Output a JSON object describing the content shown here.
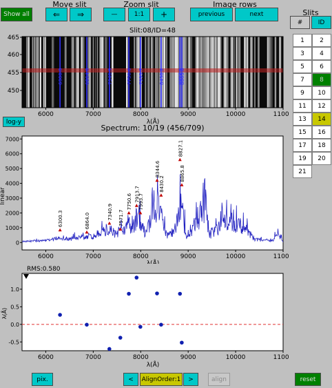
{
  "toolbar": {
    "show_all": "Show all",
    "move_slit_title": "Move slit",
    "move_left": "⇐",
    "move_right": "⇒",
    "zoom_slit_title": "Zoom slit",
    "zoom_out": "—",
    "zoom_reset": "1:1",
    "zoom_in": "+",
    "image_rows_title": "Image rows",
    "previous": "previous",
    "next": "next"
  },
  "slits": {
    "title": "Slits",
    "col_hash": "#",
    "col_id": "ID",
    "rows": [
      [
        "1",
        "2"
      ],
      [
        "3",
        "4"
      ],
      [
        "5",
        "6"
      ],
      [
        "7",
        "8"
      ],
      [
        "9",
        "10"
      ],
      [
        "11",
        "12"
      ],
      [
        "13",
        "14"
      ],
      [
        "15",
        "16"
      ],
      [
        "17",
        "18"
      ],
      [
        "19",
        "20"
      ],
      [
        "21",
        ""
      ]
    ],
    "highlight_green": "8",
    "highlight_yellow": "14"
  },
  "image_panel": {
    "title": "Slit:08/ID=48",
    "y_ticks": [
      "465",
      "460",
      "455",
      "450"
    ],
    "x_ticks": [
      "6000",
      "7000",
      "8000",
      "9000",
      "10000",
      "11000"
    ],
    "x_label": "λ(Å)",
    "line_labels": [
      "6300.3",
      "6864.0",
      "7340.9",
      "7750.6",
      "7993.7",
      "8430.2",
      "8827.1",
      "8865.8"
    ]
  },
  "logy_button": "log-y",
  "spectrum_panel": {
    "title": "Spectrum: 10/19 (456/709)",
    "y_label": "linear",
    "y_ticks": [
      "7000",
      "6000",
      "5000",
      "4000",
      "3000",
      "2000",
      "1000",
      "0"
    ],
    "x_ticks": [
      "6000",
      "7000",
      "8000",
      "9000",
      "10000",
      "11000"
    ],
    "x_label": "λ(Å)",
    "annotations": [
      "6300.3",
      "6864.0",
      "7340.9",
      "7571.7",
      "7750.6",
      "7913.7",
      "7993.7",
      "8344.6",
      "8430.2",
      "8827.1",
      "8865.8"
    ]
  },
  "residual_panel": {
    "rms": "RMS:0.580",
    "y_label": "λ(Å)",
    "y_ticks": [
      "1.0",
      "0.5",
      "0.0",
      "-0.5"
    ],
    "x_ticks": [
      "6000",
      "7000",
      "8000",
      "9000",
      "10000",
      "11000"
    ],
    "x_label": "λ(Å)"
  },
  "bottom_bar": {
    "pix": "pix.",
    "prev_order": "<",
    "order": "AlignOrder:1",
    "next_order": ">",
    "align": "align",
    "reset": "reset"
  },
  "chart_data": [
    {
      "type": "line",
      "title": "Spectrum: 10/19 (456/709)",
      "ylabel": "linear",
      "xlabel": "λ(Å)",
      "xlim": [
        5500,
        11000
      ],
      "ylim": [
        -500,
        7200
      ],
      "series": [
        {
          "x": [
            5500,
            5800,
            6000,
            6300,
            6500,
            6864,
            7000,
            7250,
            7340,
            7450,
            7571,
            7650,
            7750,
            7850,
            7913,
            7993,
            8100,
            8250,
            8344,
            8430,
            8550,
            8700,
            8780,
            8827,
            8865,
            8950,
            9100,
            9250,
            9350,
            9450,
            9600,
            9800,
            10000,
            10200,
            10400,
            10600,
            10800,
            10880,
            11000
          ],
          "y": [
            0,
            100,
            150,
            400,
            250,
            700,
            600,
            1400,
            1800,
            1000,
            1200,
            1100,
            2400,
            1900,
            2800,
            2300,
            900,
            3200,
            4200,
            3600,
            700,
            1100,
            3800,
            5500,
            4100,
            600,
            1800,
            3300,
            5000,
            900,
            1500,
            2300,
            2400,
            1500,
            300,
            200,
            150,
            1200,
            50
          ]
        }
      ],
      "annotations": [
        {
          "label": "6300.3",
          "x": 6300.3,
          "y": 850
        },
        {
          "label": "6864.0",
          "x": 6864.0,
          "y": 700
        },
        {
          "label": "7340.9",
          "x": 7340.9,
          "y": 1300
        },
        {
          "label": "7571.7",
          "x": 7571.7,
          "y": 900
        },
        {
          "label": "7750.6",
          "x": 7750.6,
          "y": 2000
        },
        {
          "label": "7913.7",
          "x": 7913.7,
          "y": 2500
        },
        {
          "label": "7993.7",
          "x": 7993.7,
          "y": 2000
        },
        {
          "label": "8344.6",
          "x": 8344.6,
          "y": 4200
        },
        {
          "label": "8430.2",
          "x": 8430.2,
          "y": 3200
        },
        {
          "label": "8827.1",
          "x": 8827.1,
          "y": 5600
        },
        {
          "label": "8865.8",
          "x": 8865.8,
          "y": 3900
        }
      ]
    },
    {
      "type": "scatter",
      "title": "",
      "xlabel": "λ(Å)",
      "ylabel": "λ(Å)",
      "xlim": [
        5500,
        11000
      ],
      "ylim": [
        -0.75,
        1.45
      ],
      "series": [
        {
          "x": [
            6300,
            6864,
            7340,
            7571,
            7750,
            7913,
            7993,
            8344,
            8430,
            8827,
            8865
          ],
          "y": [
            0.27,
            -0.01,
            -0.7,
            -0.38,
            0.87,
            1.33,
            -0.07,
            0.88,
            -0.01,
            0.87,
            -0.52
          ]
        }
      ],
      "reference_line": 0
    }
  ]
}
